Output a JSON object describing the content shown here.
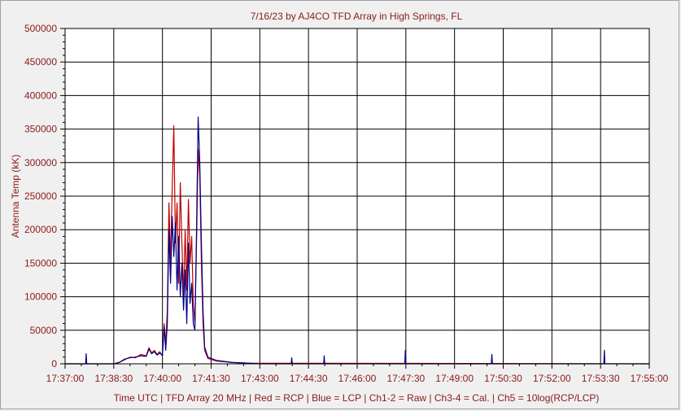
{
  "chart_data": {
    "type": "line",
    "title": "7/16/23  by  AJ4CO TFD Array  in  High Springs, FL",
    "xlabel": "Time UTC | TFD Array 20 MHz | Red = RCP | Blue = LCP | Ch1-2 = Raw | Ch3-4 = Cal. | Ch5 = 10log(RCP/LCP)",
    "ylabel": "Antenna Temp (kK)",
    "xlim": [
      "17:37:00",
      "17:55:00"
    ],
    "ylim": [
      0,
      500000
    ],
    "x_ticks": [
      "17:37:00",
      "17:38:30",
      "17:40:00",
      "17:41:30",
      "17:43:00",
      "17:44:30",
      "17:46:00",
      "17:47:30",
      "17:49:00",
      "17:50:30",
      "17:52:00",
      "17:53:30",
      "17:55:00"
    ],
    "y_ticks": [
      0,
      50000,
      100000,
      150000,
      200000,
      250000,
      300000,
      350000,
      400000,
      450000,
      500000
    ],
    "y_tick_labels": [
      "0",
      "50000",
      "100000",
      "150000",
      "200000",
      "250000",
      "300000",
      "350000",
      "400000",
      "450000",
      "500000"
    ],
    "grid": true,
    "series": [
      {
        "name": "RCP",
        "color": "#c00000",
        "points": [
          [
            "17:37:00",
            0
          ],
          [
            "17:38:30",
            0
          ],
          [
            "17:38:40",
            2000
          ],
          [
            "17:38:50",
            6000
          ],
          [
            "17:39:00",
            10000
          ],
          [
            "17:39:10",
            9000
          ],
          [
            "17:39:20",
            14000
          ],
          [
            "17:39:30",
            12000
          ],
          [
            "17:39:35",
            24000
          ],
          [
            "17:39:40",
            16000
          ],
          [
            "17:39:45",
            20000
          ],
          [
            "17:39:50",
            14000
          ],
          [
            "17:39:55",
            18000
          ],
          [
            "17:40:00",
            12000
          ],
          [
            "17:40:03",
            60000
          ],
          [
            "17:40:06",
            30000
          ],
          [
            "17:40:09",
            80000
          ],
          [
            "17:40:12",
            240000
          ],
          [
            "17:40:15",
            150000
          ],
          [
            "17:40:18",
            260000
          ],
          [
            "17:40:21",
            355000
          ],
          [
            "17:40:24",
            180000
          ],
          [
            "17:40:27",
            240000
          ],
          [
            "17:40:30",
            120000
          ],
          [
            "17:40:33",
            270000
          ],
          [
            "17:40:36",
            180000
          ],
          [
            "17:40:39",
            100000
          ],
          [
            "17:40:42",
            200000
          ],
          [
            "17:40:45",
            110000
          ],
          [
            "17:40:48",
            245000
          ],
          [
            "17:40:51",
            150000
          ],
          [
            "17:40:54",
            190000
          ],
          [
            "17:40:57",
            90000
          ],
          [
            "17:41:00",
            60000
          ],
          [
            "17:41:03",
            180000
          ],
          [
            "17:41:06",
            320000
          ],
          [
            "17:41:09",
            280000
          ],
          [
            "17:41:12",
            150000
          ],
          [
            "17:41:15",
            60000
          ],
          [
            "17:41:18",
            20000
          ],
          [
            "17:41:24",
            8000
          ],
          [
            "17:41:40",
            4000
          ],
          [
            "17:42:10",
            2000
          ],
          [
            "17:42:40",
            1000
          ],
          [
            "17:55:00",
            0
          ]
        ]
      },
      {
        "name": "LCP",
        "color": "#00008b",
        "points": [
          [
            "17:37:00",
            0
          ],
          [
            "17:37:38",
            0
          ],
          [
            "17:37:39",
            15000
          ],
          [
            "17:37:40",
            0
          ],
          [
            "17:38:30",
            0
          ],
          [
            "17:38:40",
            2000
          ],
          [
            "17:38:50",
            7000
          ],
          [
            "17:39:00",
            9000
          ],
          [
            "17:39:10",
            10000
          ],
          [
            "17:39:20",
            12000
          ],
          [
            "17:39:30",
            11000
          ],
          [
            "17:39:35",
            22000
          ],
          [
            "17:39:40",
            15000
          ],
          [
            "17:39:45",
            18000
          ],
          [
            "17:39:50",
            13000
          ],
          [
            "17:39:55",
            16000
          ],
          [
            "17:40:00",
            12000
          ],
          [
            "17:40:03",
            55000
          ],
          [
            "17:40:06",
            20000
          ],
          [
            "17:40:09",
            60000
          ],
          [
            "17:40:12",
            200000
          ],
          [
            "17:40:15",
            120000
          ],
          [
            "17:40:18",
            220000
          ],
          [
            "17:40:21",
            160000
          ],
          [
            "17:40:24",
            210000
          ],
          [
            "17:40:27",
            110000
          ],
          [
            "17:40:30",
            190000
          ],
          [
            "17:40:33",
            100000
          ],
          [
            "17:40:36",
            150000
          ],
          [
            "17:40:39",
            80000
          ],
          [
            "17:40:42",
            140000
          ],
          [
            "17:40:45",
            60000
          ],
          [
            "17:40:48",
            180000
          ],
          [
            "17:40:51",
            90000
          ],
          [
            "17:40:54",
            120000
          ],
          [
            "17:40:57",
            60000
          ],
          [
            "17:41:00",
            50000
          ],
          [
            "17:41:03",
            200000
          ],
          [
            "17:41:06",
            368000
          ],
          [
            "17:41:09",
            300000
          ],
          [
            "17:41:12",
            180000
          ],
          [
            "17:41:15",
            80000
          ],
          [
            "17:41:18",
            25000
          ],
          [
            "17:41:24",
            10000
          ],
          [
            "17:41:40",
            5000
          ],
          [
            "17:42:10",
            2000
          ],
          [
            "17:42:40",
            1000
          ],
          [
            "17:43:00",
            0
          ],
          [
            "17:43:58",
            0
          ],
          [
            "17:43:59",
            9000
          ],
          [
            "17:44:00",
            0
          ],
          [
            "17:44:58",
            0
          ],
          [
            "17:44:59",
            12000
          ],
          [
            "17:45:00",
            0
          ],
          [
            "17:47:28",
            0
          ],
          [
            "17:47:29",
            20000
          ],
          [
            "17:47:30",
            0
          ],
          [
            "17:50:08",
            0
          ],
          [
            "17:50:09",
            14000
          ],
          [
            "17:50:10",
            0
          ],
          [
            "17:53:36",
            0
          ],
          [
            "17:53:37",
            20000
          ],
          [
            "17:53:38",
            0
          ],
          [
            "17:55:00",
            0
          ]
        ]
      }
    ]
  }
}
